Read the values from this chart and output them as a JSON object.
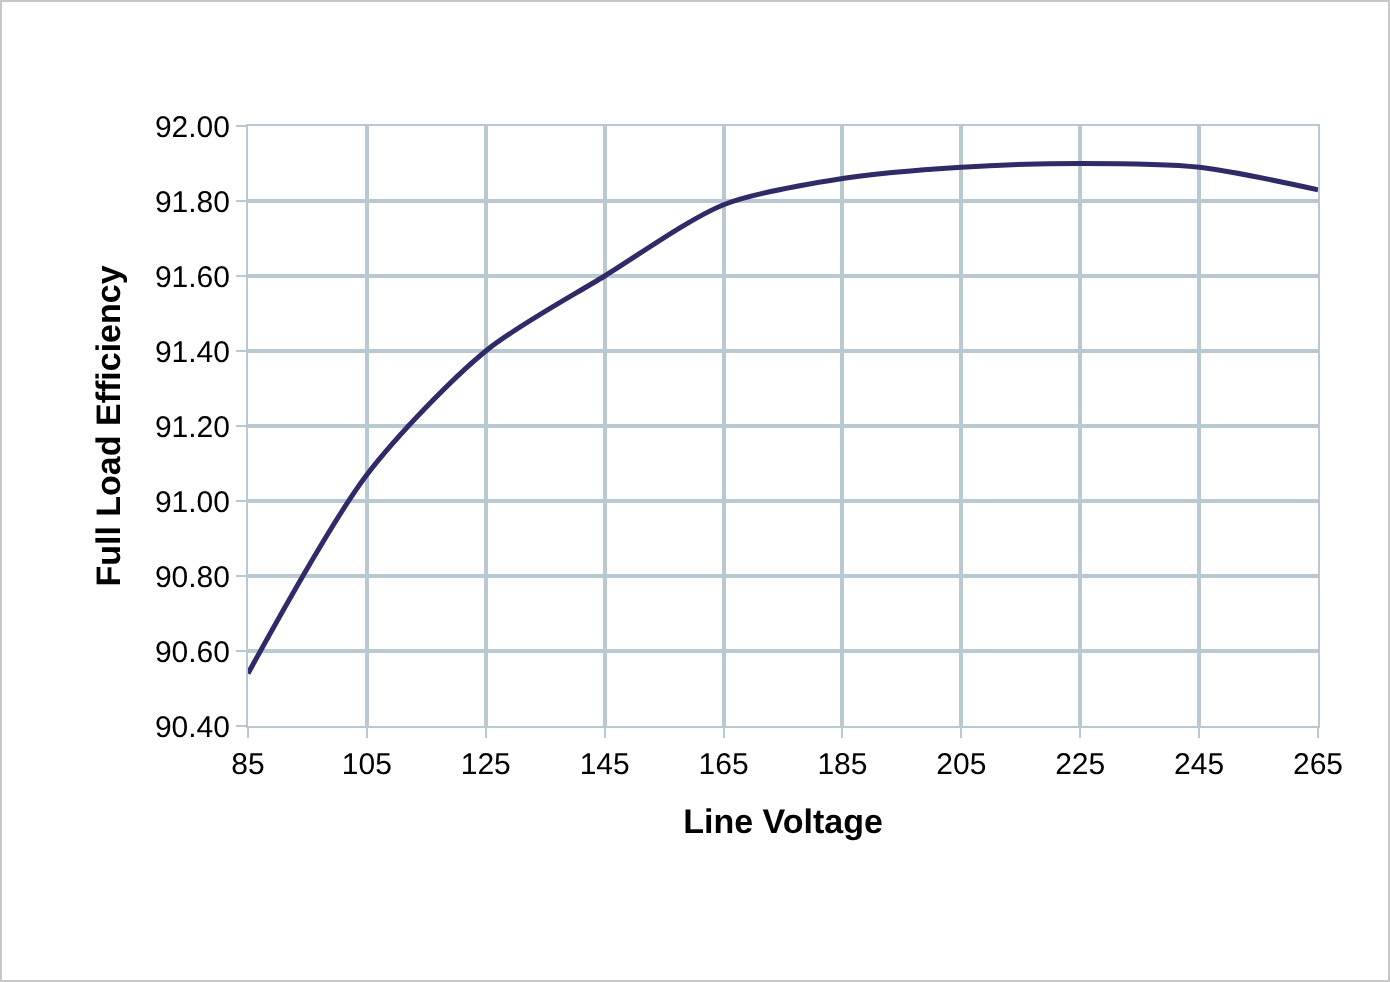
{
  "chart_data": {
    "type": "line",
    "xlabel": "Line Voltage",
    "ylabel": "Full Load Efficiency",
    "x": [
      85,
      105,
      125,
      145,
      165,
      185,
      205,
      225,
      245,
      265
    ],
    "series": [
      {
        "color": "#2e2a6b",
        "values": [
          90.54,
          91.07,
          91.4,
          91.6,
          91.79,
          91.86,
          91.89,
          91.9,
          91.89,
          91.83
        ]
      }
    ],
    "xlim": [
      85,
      265
    ],
    "xticks": [
      85,
      105,
      125,
      145,
      165,
      185,
      205,
      225,
      245,
      265
    ],
    "ylim": [
      90.4,
      92.0
    ],
    "yticks": [
      {
        "value": 90.4,
        "label": "90.40"
      },
      {
        "value": 90.6,
        "label": "90.60"
      },
      {
        "value": 90.8,
        "label": "90.80"
      },
      {
        "value": 91.0,
        "label": "91.00"
      },
      {
        "value": 91.2,
        "label": "91.20"
      },
      {
        "value": 91.4,
        "label": "91.40"
      },
      {
        "value": 91.6,
        "label": "91.60"
      },
      {
        "value": 91.8,
        "label": "91.80"
      },
      {
        "value": 92.0,
        "label": "92.00"
      }
    ],
    "grid": true,
    "marker": "none",
    "line_style": "solid"
  }
}
